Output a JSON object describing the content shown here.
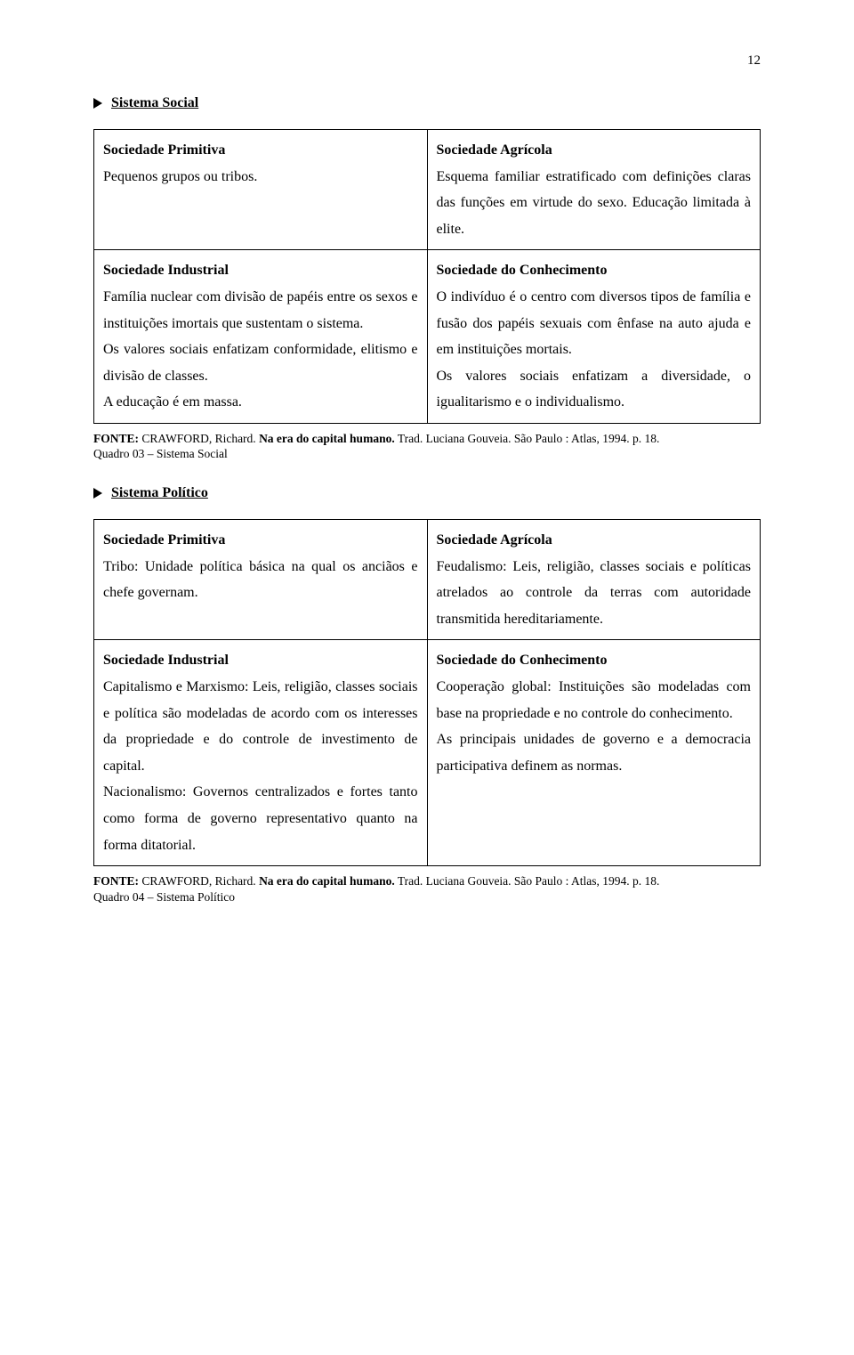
{
  "pageNumber": "12",
  "sections": [
    {
      "title": "Sistema Social",
      "cells": {
        "topLeft": {
          "heading": "Sociedade Primitiva",
          "body": "Pequenos grupos ou tribos."
        },
        "topRight": {
          "heading": "Sociedade Agrícola",
          "body": "Esquema familiar estratificado com definições claras das funções em virtude do sexo. Educação limitada à elite."
        },
        "bottomLeft": {
          "heading": "Sociedade Industrial",
          "body": "Família nuclear com divisão de papéis entre os sexos e instituições imortais que sustentam o sistema.\nOs valores sociais enfatizam conformidade, elitismo e divisão de classes.\nA educação é em massa."
        },
        "bottomRight": {
          "heading": "Sociedade do Conhecimento",
          "body": "O indivíduo é o centro com diversos tipos de família e fusão dos papéis sexuais com ênfase na auto ajuda e em instituições mortais.\nOs valores sociais enfatizam a diversidade, o igualitarismo e o individualismo."
        }
      },
      "footnote": {
        "source": "FONTE: ",
        "author": "CRAWFORD, Richard. ",
        "title": "Na era do capital humano.",
        "rest": " Trad. Luciana Gouveia. São Paulo : Atlas, 1994. p. 18.",
        "quadro": "Quadro 03 – Sistema Social"
      }
    },
    {
      "title": "Sistema Político",
      "cells": {
        "topLeft": {
          "heading": "Sociedade Primitiva",
          "body": "Tribo: Unidade política básica na qual os anciãos e chefe governam."
        },
        "topRight": {
          "heading": "Sociedade Agrícola",
          "body": "Feudalismo: Leis, religião, classes sociais e políticas atrelados ao controle da terras com autoridade transmitida hereditariamente."
        },
        "bottomLeft": {
          "heading": "Sociedade Industrial",
          "body": "Capitalismo e Marxismo: Leis, religião, classes sociais e política são modeladas de acordo com os interesses da propriedade e do controle de investimento de capital.\nNacionalismo: Governos centralizados e fortes tanto como forma de governo representativo quanto na forma ditatorial."
        },
        "bottomRight": {
          "heading": "Sociedade do Conhecimento",
          "body": "Cooperação global: Instituições são modeladas com base na propriedade e no controle do conhecimento.\nAs principais unidades de governo e a democracia participativa definem as normas."
        }
      },
      "footnote": {
        "source": "FONTE: ",
        "author": "CRAWFORD, Richard. ",
        "title": "Na era do capital humano.",
        "rest": " Trad. Luciana Gouveia. São Paulo : Atlas, 1994. p. 18.",
        "quadro": "Quadro 04 – Sistema Político"
      }
    }
  ]
}
